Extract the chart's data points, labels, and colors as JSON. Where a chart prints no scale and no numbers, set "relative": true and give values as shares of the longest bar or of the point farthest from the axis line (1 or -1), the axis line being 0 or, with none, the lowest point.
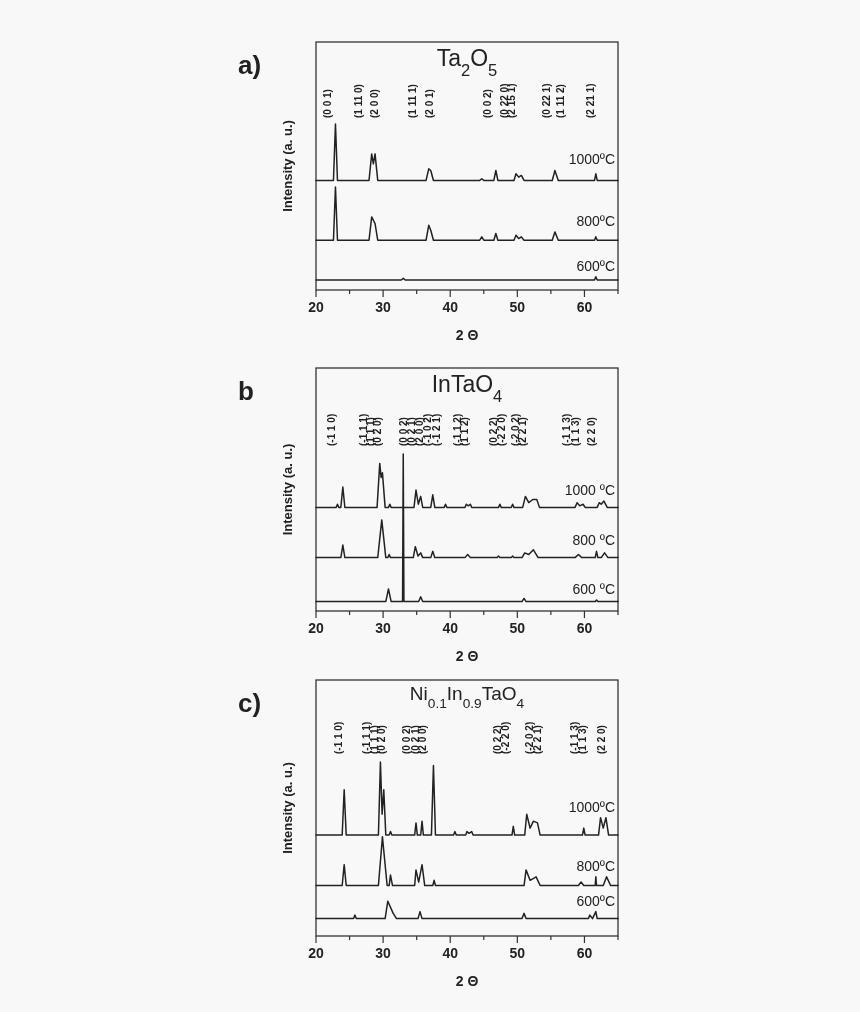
{
  "chart_data": [
    {
      "type": "line",
      "title": "Ta$_{2}$O$_{5}$",
      "xlabel": "2 Θ",
      "ylabel": "Intensity (a. u.)",
      "relative": true,
      "xlim": [
        20,
        65
      ],
      "xticks": [
        20,
        {
          "value": 25,
          "label": null
        },
        30,
        {
          "value": 35,
          "label": null
        },
        40,
        {
          "value": 45,
          "label": null
        },
        50,
        {
          "value": 55,
          "label": null
        },
        60,
        {
          "value": 65,
          "label": null
        }
      ],
      "annotations": [
        "a)",
        "(0 0 1)",
        "(1 11 0)",
        "(2 0 0)",
        "(1 11 1)",
        "(2 0 1)",
        "(0 0 2)",
        "(0 22 0)",
        "(2 15 1)",
        "(0 22 1)",
        "(1 11 2)",
        "(2 21 1)"
      ],
      "series": [
        {
          "name": "1000ºC",
          "color": "#222222",
          "x": [
            20,
            22.6,
            22.9,
            23.2,
            27.9,
            28.3,
            28.55,
            28.8,
            29.2,
            36.4,
            36.8,
            37.1,
            37.5,
            44.4,
            44.7,
            45.0,
            46.5,
            46.8,
            47.1,
            49.5,
            49.8,
            50.2,
            50.6,
            51.0,
            55.2,
            55.6,
            56.1,
            61.5,
            61.7,
            61.9,
            65
          ],
          "values": [
            0.66,
            0.66,
            1,
            0.66,
            0.66,
            0.82,
            0.76,
            0.82,
            0.66,
            0.66,
            0.73,
            0.72,
            0.66,
            0.66,
            0.67,
            0.66,
            0.66,
            0.72,
            0.66,
            0.66,
            0.7,
            0.68,
            0.69,
            0.66,
            0.66,
            0.72,
            0.66,
            0.66,
            0.7,
            0.66,
            0.66
          ]
        },
        {
          "name": "800ºC",
          "color": "#222222",
          "x": [
            20,
            22.6,
            22.9,
            23.2,
            27.9,
            28.3,
            28.55,
            28.8,
            29.2,
            36.4,
            36.8,
            37.1,
            37.5,
            44.4,
            44.7,
            45.0,
            46.5,
            46.8,
            47.1,
            49.5,
            49.8,
            50.2,
            50.6,
            51.0,
            55.2,
            55.6,
            56.1,
            61.5,
            61.7,
            61.9,
            65
          ],
          "values": [
            0.3,
            0.3,
            0.62,
            0.3,
            0.3,
            0.44,
            0.42,
            0.4,
            0.3,
            0.3,
            0.39,
            0.36,
            0.3,
            0.3,
            0.32,
            0.3,
            0.3,
            0.34,
            0.3,
            0.3,
            0.33,
            0.31,
            0.32,
            0.3,
            0.3,
            0.35,
            0.3,
            0.3,
            0.32,
            0.3,
            0.3
          ]
        },
        {
          "name": "600ºC",
          "color": "#222222",
          "x": [
            20,
            32.7,
            33.0,
            33.3,
            61.5,
            61.7,
            61.9,
            65
          ],
          "values": [
            0.06,
            0.06,
            0.07,
            0.06,
            0.06,
            0.08,
            0.06,
            0.06
          ]
        }
      ]
    },
    {
      "type": "line",
      "title": "InTaO$_{4}$",
      "xlabel": "2 Θ",
      "ylabel": "Intensity (a. u.)",
      "relative": true,
      "xlim": [
        20,
        65
      ],
      "xticks": [
        20,
        {
          "value": 25,
          "label": null
        },
        30,
        {
          "value": 35,
          "label": null
        },
        40,
        {
          "value": 45,
          "label": null
        },
        50,
        {
          "value": 55,
          "label": null
        },
        60,
        {
          "value": 65,
          "label": null
        }
      ],
      "annotations": [
        "b",
        "(-1 1 0)",
        "(-1 1 1)",
        "(1 1 1)",
        "(0 2 0)",
        "(0 0 2)",
        "(0 2 1)",
        "(2 0 0)",
        "(-1 0 2)",
        "(-1 2 1)",
        "(-1 1 2)",
        "(1 1 2)",
        "(0 2 2)",
        "(-2 2 0)",
        "(-2 0 2)",
        "(2 2 1)",
        "(-1 1 3)",
        "(1 1 3)",
        "(2 2 0)"
      ],
      "series": [
        {
          "name": "1000 ºC",
          "color": "#222222",
          "x": [
            20,
            23.0,
            23.2,
            23.4,
            23.7,
            24.0,
            24.3,
            29.1,
            29.5,
            29.7,
            29.9,
            30.3,
            30.8,
            31.0,
            31.2,
            34.6,
            34.9,
            35.25,
            35.6,
            35.9,
            37.1,
            37.4,
            37.7,
            39.1,
            39.3,
            39.5,
            42.2,
            42.4,
            42.7,
            43.0,
            43.2,
            47.2,
            47.4,
            47.6,
            49.1,
            49.3,
            49.5,
            50.8,
            51.2,
            51.7,
            52.3,
            52.9,
            53.3,
            58.6,
            58.9,
            59.3,
            59.8,
            60.1,
            61.9,
            62.2,
            62.5,
            62.9,
            63.4,
            65
          ],
          "values": [
            0.66,
            0.66,
            0.68,
            0.66,
            0.66,
            0.79,
            0.66,
            0.66,
            0.94,
            0.85,
            0.88,
            0.66,
            0.66,
            0.68,
            0.66,
            0.66,
            0.77,
            0.68,
            0.73,
            0.66,
            0.66,
            0.74,
            0.66,
            0.66,
            0.68,
            0.66,
            0.66,
            0.68,
            0.67,
            0.68,
            0.66,
            0.66,
            0.68,
            0.66,
            0.66,
            0.68,
            0.66,
            0.66,
            0.73,
            0.69,
            0.71,
            0.71,
            0.66,
            0.66,
            0.69,
            0.67,
            0.68,
            0.66,
            0.66,
            0.69,
            0.68,
            0.7,
            0.66,
            0.66
          ]
        },
        {
          "name": "800 ºC",
          "color": "#222222",
          "x": [
            20,
            23.7,
            24.0,
            24.3,
            29.2,
            29.8,
            30.4,
            30.7,
            30.9,
            31.1,
            34.5,
            34.8,
            35.2,
            35.6,
            35.9,
            37.1,
            37.4,
            37.7,
            42.2,
            42.6,
            43.0,
            47.0,
            47.2,
            47.4,
            49.1,
            49.3,
            49.5,
            50.7,
            51.1,
            51.7,
            52.4,
            53.1,
            58.6,
            59.1,
            59.6,
            61.6,
            61.8,
            62.0,
            62.5,
            63.0,
            63.5,
            65
          ],
          "values": [
            0.34,
            0.34,
            0.42,
            0.34,
            0.34,
            0.58,
            0.34,
            0.34,
            0.36,
            0.34,
            0.34,
            0.41,
            0.35,
            0.37,
            0.34,
            0.34,
            0.38,
            0.34,
            0.34,
            0.36,
            0.34,
            0.34,
            0.35,
            0.34,
            0.34,
            0.35,
            0.34,
            0.34,
            0.37,
            0.36,
            0.39,
            0.34,
            0.34,
            0.36,
            0.34,
            0.34,
            0.38,
            0.34,
            0.34,
            0.37,
            0.34,
            0.34
          ]
        },
        {
          "name": "600 ºC",
          "color": "#222222",
          "x": [
            20,
            30.4,
            30.8,
            31.2,
            32.9,
            33.0,
            33.1,
            35.3,
            35.6,
            35.9,
            50.7,
            51.0,
            51.3,
            61.6,
            61.8,
            62.0,
            65
          ],
          "values": [
            0.06,
            0.06,
            0.14,
            0.06,
            0.06,
            1,
            0.06,
            0.06,
            0.09,
            0.06,
            0.06,
            0.08,
            0.06,
            0.06,
            0.07,
            0.06,
            0.06
          ]
        }
      ]
    },
    {
      "type": "line",
      "title": "Ni$_{0.1}$In$_{0.9}$TaO$_{4}$",
      "xlabel": "2 Θ",
      "ylabel": "Intensity (a. u.)",
      "relative": true,
      "xlim": [
        20,
        65
      ],
      "xticks": [
        20,
        {
          "value": 25,
          "label": null
        },
        30,
        {
          "value": 35,
          "label": null
        },
        40,
        {
          "value": 45,
          "label": null
        },
        50,
        {
          "value": 55,
          "label": null
        },
        60,
        {
          "value": 65,
          "label": null
        }
      ],
      "annotations": [
        "c)",
        "(-1 1 0)",
        "(-1 1 1)",
        "(1 1 1)",
        "(0 2 0)",
        "(0 0 2)",
        "(0 2 1)",
        "(2 0 0)",
        "(0 2 2)",
        "(-2 2 0)",
        "(-2 0 2)",
        "(2 2 1)",
        "(-1 1 3)",
        "(1 1 3)",
        "(2 2 0)"
      ],
      "series": [
        {
          "name": "1000ºC",
          "color": "#222222",
          "x": [
            20,
            23.9,
            24.2,
            24.5,
            29.3,
            29.6,
            29.85,
            30.1,
            30.4,
            30.9,
            31.1,
            31.3,
            34.7,
            34.9,
            35.1,
            35.6,
            35.8,
            36.0,
            37.2,
            37.5,
            37.8,
            40.5,
            40.7,
            40.9,
            42.3,
            42.5,
            42.8,
            43.2,
            43.4,
            49.2,
            49.4,
            49.6,
            51.1,
            51.4,
            51.9,
            52.4,
            53.0,
            53.4,
            59.7,
            59.9,
            60.1,
            62.1,
            62.4,
            62.8,
            63.2,
            63.6,
            65
          ],
          "values": [
            0.58,
            0.58,
            0.84,
            0.58,
            0.58,
            1,
            0.7,
            0.84,
            0.58,
            0.58,
            0.6,
            0.58,
            0.58,
            0.65,
            0.58,
            0.58,
            0.66,
            0.58,
            0.58,
            0.98,
            0.58,
            0.58,
            0.6,
            0.58,
            0.58,
            0.6,
            0.59,
            0.6,
            0.58,
            0.58,
            0.63,
            0.58,
            0.58,
            0.7,
            0.62,
            0.66,
            0.65,
            0.58,
            0.58,
            0.62,
            0.58,
            0.58,
            0.68,
            0.62,
            0.68,
            0.58,
            0.58
          ]
        },
        {
          "name": "800ºC",
          "color": "#222222",
          "x": [
            20,
            23.9,
            24.2,
            24.5,
            29.3,
            29.9,
            30.6,
            30.9,
            31.1,
            31.4,
            34.7,
            34.9,
            35.3,
            35.8,
            36.2,
            37.4,
            37.6,
            37.8,
            51.0,
            51.3,
            51.9,
            52.8,
            53.4,
            59.1,
            59.5,
            59.9,
            61.6,
            61.7,
            61.8,
            62.8,
            63.3,
            63.9,
            65
          ],
          "values": [
            0.29,
            0.29,
            0.41,
            0.29,
            0.29,
            0.57,
            0.29,
            0.29,
            0.35,
            0.29,
            0.29,
            0.38,
            0.31,
            0.41,
            0.29,
            0.29,
            0.32,
            0.29,
            0.29,
            0.38,
            0.32,
            0.34,
            0.29,
            0.29,
            0.31,
            0.29,
            0.29,
            0.34,
            0.29,
            0.29,
            0.34,
            0.29,
            0.29
          ]
        },
        {
          "name": "600ºC",
          "color": "#222222",
          "x": [
            20,
            25.6,
            25.8,
            26.0,
            30.3,
            30.7,
            31.5,
            32.0,
            35.2,
            35.5,
            35.8,
            50.7,
            51.0,
            51.3,
            60.6,
            60.8,
            61.2,
            61.7,
            61.9,
            65
          ],
          "values": [
            0.1,
            0.1,
            0.12,
            0.1,
            0.1,
            0.2,
            0.13,
            0.1,
            0.1,
            0.14,
            0.1,
            0.1,
            0.13,
            0.1,
            0.1,
            0.12,
            0.1,
            0.14,
            0.1,
            0.1
          ]
        }
      ]
    }
  ]
}
